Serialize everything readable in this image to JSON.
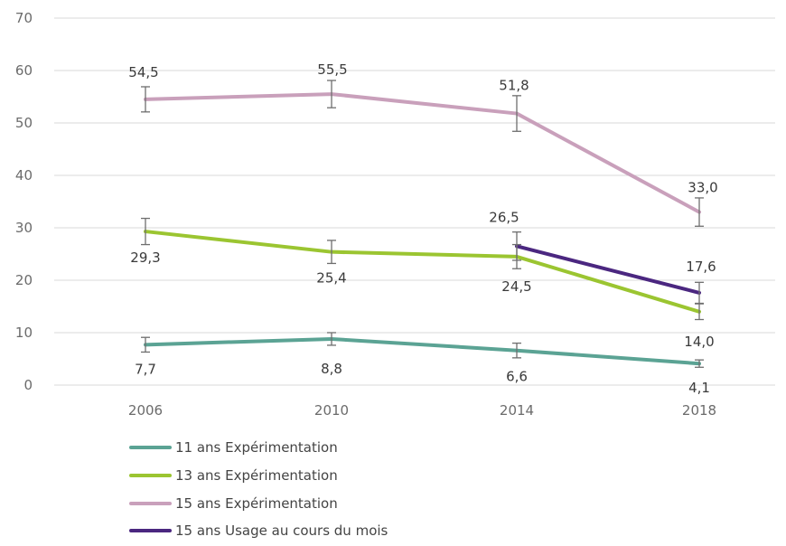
{
  "chart_data": {
    "type": "line",
    "title": "",
    "xlabel": "",
    "ylabel": "",
    "categories": [
      "2006",
      "2010",
      "2014",
      "2018"
    ],
    "ylim": [
      0,
      70
    ],
    "yticks": [
      0,
      10,
      20,
      30,
      40,
      50,
      60,
      70
    ],
    "grid": true,
    "legend_position": "bottom-left",
    "series": [
      {
        "name": "11 ans Expérimentation",
        "color": "#5ba394",
        "x": [
          "2006",
          "2010",
          "2014",
          "2018"
        ],
        "values": [
          7.7,
          8.8,
          6.6,
          4.1
        ],
        "labels": [
          "7,7",
          "8,8",
          "6,6",
          "4,1"
        ],
        "error_low": [
          6.3,
          7.6,
          5.2,
          3.4
        ],
        "error_high": [
          9.1,
          10.0,
          8.0,
          4.8
        ]
      },
      {
        "name": "13 ans Expérimentation",
        "color": "#9bc531",
        "x": [
          "2006",
          "2010",
          "2014",
          "2018"
        ],
        "values": [
          29.3,
          25.4,
          24.5,
          14.0
        ],
        "labels": [
          "29,3",
          "25,4",
          "24,5",
          "14,0"
        ],
        "error_low": [
          26.8,
          23.2,
          22.2,
          12.5
        ],
        "error_high": [
          31.8,
          27.6,
          26.8,
          15.5
        ]
      },
      {
        "name": "15 ans Expérimentation",
        "color": "#c9a0bb",
        "x": [
          "2006",
          "2010",
          "2014",
          "2018"
        ],
        "values": [
          54.5,
          55.5,
          51.8,
          33.0
        ],
        "labels": [
          "54,5",
          "55,5",
          "51,8",
          "33,0"
        ],
        "error_low": [
          52.1,
          52.9,
          48.4,
          30.3
        ],
        "error_high": [
          56.9,
          58.1,
          55.2,
          35.7
        ]
      },
      {
        "name": "15 ans Usage au cours du mois",
        "color": "#4b2780",
        "x": [
          "2014",
          "2018"
        ],
        "values": [
          26.5,
          17.6
        ],
        "labels": [
          "26,5",
          "17,6"
        ],
        "error_low": [
          23.8,
          15.6
        ],
        "error_high": [
          29.2,
          19.6
        ]
      }
    ]
  }
}
